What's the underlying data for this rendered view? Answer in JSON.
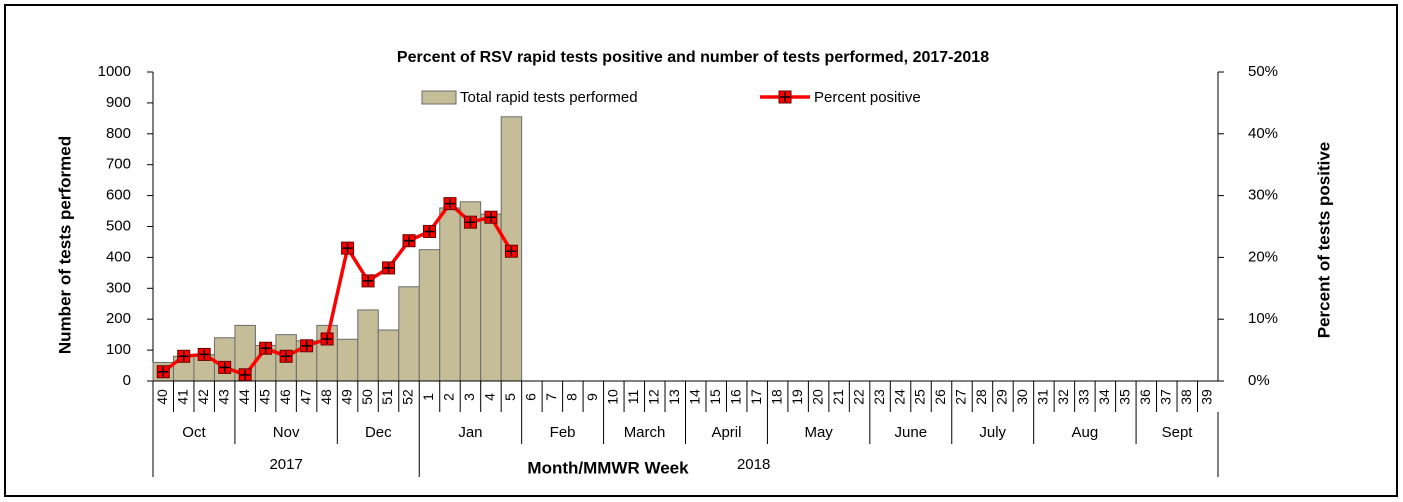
{
  "chart_data": {
    "type": "bar-line",
    "title": "Percent of RSV rapid tests positive and number of tests performed, 2017-2018",
    "x_label": "Month/MMWR Week",
    "y_label": "Number of tests performed",
    "y2_label": "Percent of tests positive",
    "categories": [
      "40",
      "41",
      "42",
      "43",
      "44",
      "45",
      "46",
      "47",
      "48",
      "49",
      "50",
      "51",
      "52",
      "1",
      "2",
      "3",
      "4",
      "5",
      "6",
      "7",
      "8",
      "9",
      "10",
      "11",
      "12",
      "13",
      "14",
      "15",
      "16",
      "17",
      "18",
      "19",
      "20",
      "21",
      "22",
      "23",
      "24",
      "25",
      "26",
      "27",
      "28",
      "29",
      "30",
      "31",
      "32",
      "33",
      "34",
      "35",
      "36",
      "37",
      "38",
      "39"
    ],
    "month_groups": [
      {
        "label": "Oct",
        "weeks": 4
      },
      {
        "label": "Nov",
        "weeks": 5
      },
      {
        "label": "Dec",
        "weeks": 4
      },
      {
        "label": "Jan",
        "weeks": 5
      },
      {
        "label": "Feb",
        "weeks": 4
      },
      {
        "label": "March",
        "weeks": 4
      },
      {
        "label": "April",
        "weeks": 4
      },
      {
        "label": "May",
        "weeks": 5
      },
      {
        "label": "June",
        "weeks": 4
      },
      {
        "label": "July",
        "weeks": 4
      },
      {
        "label": "Aug",
        "weeks": 5
      },
      {
        "label": "Sept",
        "weeks": 4
      }
    ],
    "year_groups": [
      {
        "label": "2017",
        "weeks": 13
      },
      {
        "label": "2018",
        "weeks": 39
      }
    ],
    "series": [
      {
        "name": "Total rapid tests performed",
        "type": "bar",
        "color": "#c4bd97",
        "values": [
          60,
          80,
          85,
          140,
          180,
          115,
          150,
          130,
          180,
          135,
          230,
          165,
          305,
          425,
          560,
          580,
          540,
          855,
          null,
          null,
          null,
          null,
          null,
          null,
          null,
          null,
          null,
          null,
          null,
          null,
          null,
          null,
          null,
          null,
          null,
          null,
          null,
          null,
          null,
          null,
          null,
          null,
          null,
          null,
          null,
          null,
          null,
          null,
          null,
          null,
          null,
          null
        ]
      },
      {
        "name": "Percent positive",
        "type": "line",
        "axis": "y2",
        "color": "#ff0000",
        "values": [
          1.5,
          4,
          4.3,
          2.2,
          1,
          5.3,
          4,
          5.7,
          6.8,
          21.5,
          16.2,
          18.3,
          22.7,
          24.2,
          28.7,
          25.7,
          26.5,
          21,
          null,
          null,
          null,
          null,
          null,
          null,
          null,
          null,
          null,
          null,
          null,
          null,
          null,
          null,
          null,
          null,
          null,
          null,
          null,
          null,
          null,
          null,
          null,
          null,
          null,
          null,
          null,
          null,
          null,
          null,
          null,
          null,
          null,
          null
        ]
      }
    ],
    "ylim": [
      0,
      1000
    ],
    "yticks": [
      0,
      100,
      200,
      300,
      400,
      500,
      600,
      700,
      800,
      900,
      1000
    ],
    "y2lim": [
      0,
      50
    ],
    "y2ticks": [
      {
        "value": 0,
        "label": "0%"
      },
      {
        "value": 10,
        "label": "10%"
      },
      {
        "value": 20,
        "label": "20%"
      },
      {
        "value": 30,
        "label": "30%"
      },
      {
        "value": 40,
        "label": "40%"
      },
      {
        "value": 50,
        "label": "50%"
      }
    ],
    "legend": "top"
  }
}
